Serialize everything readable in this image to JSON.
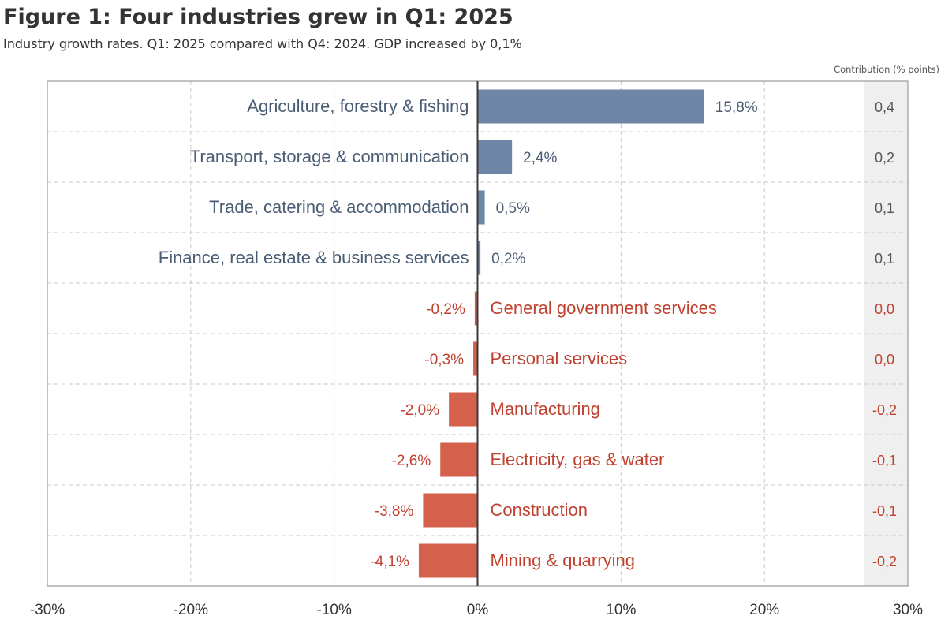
{
  "header": {
    "title": "Figure 1: Four industries grew in Q1: 2025",
    "subtitle": "Industry growth rates. Q1: 2025 compared with Q4: 2024. GDP increased by 0,1%",
    "contribution_heading": "Contribution (% points)"
  },
  "colors": {
    "positive": "#6e86a5",
    "negative": "#d5604c",
    "positive_text": "#4a5d75",
    "negative_text": "#c0412f",
    "grid": "#c8c8c8",
    "contribution_band": "#efefef"
  },
  "chart_data": {
    "type": "bar",
    "orientation": "horizontal",
    "title": "Figure 1: Four industries grew in Q1: 2025",
    "subtitle": "Industry growth rates. Q1: 2025 compared with Q4: 2024. GDP increased by 0,1%",
    "xlim": [
      -30,
      30
    ],
    "xticks": [
      -30,
      -20,
      -10,
      0,
      10,
      20,
      30
    ],
    "xtick_labels": [
      "-30%",
      "-20%",
      "-10%",
      "0%",
      "10%",
      "20%",
      "30%"
    ],
    "grid": true,
    "categories": [
      "Agriculture, forestry & fishing",
      "Transport, storage & communication",
      "Trade, catering & accommodation",
      "Finance, real estate & business services",
      "General government services",
      "Personal services",
      "Manufacturing",
      "Electricity, gas & water",
      "Construction",
      "Mining & quarrying"
    ],
    "values": [
      15.8,
      2.4,
      0.5,
      0.2,
      -0.2,
      -0.3,
      -2.0,
      -2.6,
      -3.8,
      -4.1
    ],
    "value_labels": [
      "15,8%",
      "2,4%",
      "0,5%",
      "0,2%",
      "-0,2%",
      "-0,3%",
      "-2,0%",
      "-2,6%",
      "-3,8%",
      "-4,1%"
    ],
    "contribution_label": "Contribution (% points)",
    "contributions": [
      "0,4",
      "0,2",
      "0,1",
      "0,1",
      "0,0",
      "0,0",
      "-0,2",
      "-0,1",
      "-0,1",
      "-0,2"
    ]
  }
}
